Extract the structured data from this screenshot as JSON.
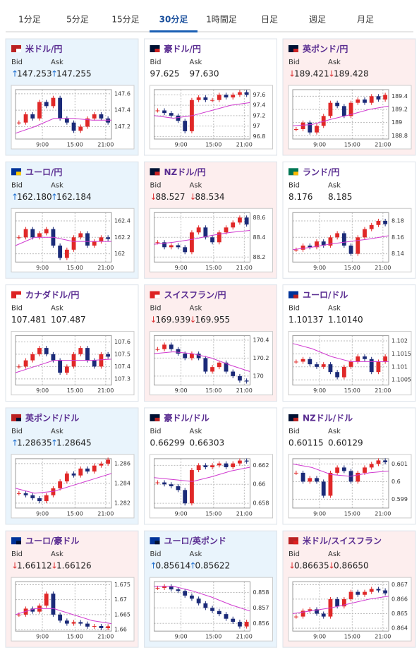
{
  "tabs": [
    "1分足",
    "5分足",
    "15分足",
    "30分足",
    "1時間足",
    "日足",
    "週足",
    "月足"
  ],
  "active_tab": "30分足",
  "labels": {
    "bid": "Bid",
    "ask": "Ask"
  },
  "time_ticks": [
    "9:00",
    "15:00",
    "21:00"
  ],
  "quotes": [
    {
      "name": "米ドル/円",
      "bid_arrow": "↑",
      "bid": "147.253",
      "ask_arrow": "↑",
      "ask": "147.255",
      "ylim": [
        147.05,
        147.65
      ],
      "yticks": [
        147.2,
        147.4,
        147.6
      ],
      "closes": [
        147.25,
        147.35,
        147.3,
        147.5,
        147.45,
        147.55,
        147.3,
        147.25,
        147.15,
        147.2,
        147.3,
        147.35,
        147.3,
        147.25
      ],
      "ma": [
        147.12,
        147.2,
        147.3,
        147.3,
        147.28,
        147.28
      ]
    },
    {
      "name": "豪ドル/円",
      "bid": "97.625",
      "ask": "97.630",
      "ylim": [
        96.75,
        97.7
      ],
      "yticks": [
        96.8,
        97,
        97.2,
        97.4,
        97.6
      ],
      "closes": [
        97.3,
        97.25,
        97.2,
        97.1,
        96.9,
        97.5,
        97.55,
        97.5,
        97.5,
        97.6,
        97.55,
        97.6,
        97.65,
        97.6
      ],
      "ma": [
        97.2,
        97.15,
        97.2,
        97.3,
        97.4,
        97.45
      ]
    },
    {
      "name": "英ポンド/円",
      "bid_arrow": "↓",
      "bid": "189.421",
      "ask_arrow": "↓",
      "ask": "189.428",
      "ylim": [
        188.75,
        189.5
      ],
      "yticks": [
        188.8,
        189,
        189.2,
        189.4
      ],
      "closes": [
        188.9,
        189.0,
        188.85,
        188.95,
        189.1,
        189.3,
        189.25,
        189.1,
        189.3,
        189.35,
        189.3,
        189.4,
        189.35,
        189.42
      ],
      "ma": [
        188.95,
        188.97,
        189.05,
        189.12,
        189.2,
        189.25
      ]
    },
    {
      "name": "ユーロ/円",
      "bid_arrow": "↑",
      "bid": "162.180",
      "ask_arrow": "↑",
      "ask": "162.184",
      "ylim": [
        161.9,
        162.5
      ],
      "yticks": [
        162,
        162.2,
        162.4
      ],
      "closes": [
        162.2,
        162.3,
        162.2,
        162.25,
        162.3,
        162.1,
        161.95,
        162.05,
        162.2,
        162.25,
        162.1,
        162.15,
        162.2,
        162.18
      ],
      "ma": [
        162.1,
        162.2,
        162.2,
        162.15,
        162.15,
        162.15
      ]
    },
    {
      "name": "NZドル/円",
      "bid_arrow": "↓",
      "bid": "88.527",
      "ask_arrow": "↓",
      "ask": "88.534",
      "ylim": [
        88.15,
        88.65
      ],
      "yticks": [
        88.2,
        88.4,
        88.6
      ],
      "closes": [
        88.35,
        88.3,
        88.32,
        88.3,
        88.25,
        88.45,
        88.5,
        88.4,
        88.35,
        88.45,
        88.5,
        88.55,
        88.6,
        88.53
      ],
      "ma": [
        88.33,
        88.35,
        88.38,
        88.42,
        88.45,
        88.47
      ]
    },
    {
      "name": "ランド/円",
      "bid": "8.176",
      "ask": "8.185",
      "ylim": [
        8.13,
        8.19
      ],
      "yticks": [
        8.14,
        8.16,
        8.18
      ],
      "closes": [
        8.145,
        8.15,
        8.148,
        8.155,
        8.15,
        8.16,
        8.165,
        8.15,
        8.14,
        8.16,
        8.17,
        8.175,
        8.18,
        8.176
      ],
      "ma": [
        8.145,
        8.148,
        8.152,
        8.155,
        8.158,
        8.162
      ]
    },
    {
      "name": "カナダドル/円",
      "bid": "107.481",
      "ask": "107.487",
      "ylim": [
        107.25,
        107.65
      ],
      "yticks": [
        107.3,
        107.4,
        107.5,
        107.6
      ],
      "closes": [
        107.4,
        107.45,
        107.5,
        107.55,
        107.5,
        107.45,
        107.35,
        107.4,
        107.5,
        107.55,
        107.45,
        107.4,
        107.5,
        107.48
      ],
      "ma": [
        107.35,
        107.4,
        107.45,
        107.45,
        107.45,
        107.46
      ]
    },
    {
      "name": "スイスフラン/円",
      "bid_arrow": "↓",
      "bid": "169.939",
      "ask_arrow": "↓",
      "ask": "169.955",
      "ylim": [
        169.9,
        170.45
      ],
      "yticks": [
        170,
        170.2,
        170.4
      ],
      "closes": [
        170.3,
        170.35,
        170.3,
        170.25,
        170.2,
        170.25,
        170.2,
        170.05,
        170.1,
        170.15,
        170.05,
        170.0,
        169.95,
        169.94
      ],
      "ma": [
        170.25,
        170.27,
        170.25,
        170.2,
        170.12,
        170.05
      ]
    },
    {
      "name": "ユーロ/ドル",
      "bid": "1.10137",
      "ask": "1.10140",
      "ylim": [
        1.1003,
        1.1022
      ],
      "yticks": [
        1.1005,
        1.101,
        1.1015,
        1.102
      ],
      "closes": [
        1.1012,
        1.1013,
        1.1011,
        1.101,
        1.1011,
        1.1008,
        1.1006,
        1.101,
        1.1012,
        1.1014,
        1.1013,
        1.1008,
        1.1012,
        1.1014
      ],
      "ma": [
        1.1019,
        1.1017,
        1.1014,
        1.1012,
        1.1012,
        1.1012
      ]
    },
    {
      "name": "英ポンド/ドル",
      "bid_arrow": "↑",
      "bid": "1.28635",
      "ask_arrow": "↑",
      "ask": "1.28645",
      "ylim": [
        1.2815,
        1.2865
      ],
      "yticks": [
        1.282,
        1.284,
        1.286
      ],
      "closes": [
        1.283,
        1.2828,
        1.2825,
        1.2822,
        1.2828,
        1.2835,
        1.2842,
        1.285,
        1.2848,
        1.2855,
        1.2852,
        1.2858,
        1.286,
        1.2864
      ],
      "ma": [
        1.2835,
        1.283,
        1.2832,
        1.2838,
        1.2844,
        1.285
      ]
    },
    {
      "name": "豪ドル/ドル",
      "bid": "0.66299",
      "ask": "0.66303",
      "ylim": [
        0.6575,
        0.6627
      ],
      "yticks": [
        0.658,
        0.66,
        0.662
      ],
      "closes": [
        0.6602,
        0.66,
        0.6598,
        0.6594,
        0.658,
        0.6615,
        0.662,
        0.6618,
        0.662,
        0.6622,
        0.6618,
        0.6622,
        0.6625,
        0.6624
      ],
      "ma": [
        0.6607,
        0.6605,
        0.6603,
        0.6608,
        0.6614,
        0.6618
      ]
    },
    {
      "name": "NZドル/ドル",
      "bid": "0.60115",
      "ask": "0.60129",
      "ylim": [
        0.5985,
        0.6013
      ],
      "yticks": [
        0.599,
        0.6,
        0.601
      ],
      "closes": [
        0.6005,
        0.6,
        0.6002,
        0.6,
        0.5992,
        0.6005,
        0.6008,
        0.6006,
        0.6,
        0.6005,
        0.6008,
        0.601,
        0.6012,
        0.6011
      ],
      "ma": [
        0.601,
        0.6008,
        0.6004,
        0.6003,
        0.6005,
        0.6006
      ]
    },
    {
      "name": "ユーロ/豪ドル",
      "bid_arrow": "↓",
      "bid": "1.66112",
      "ask_arrow": "↓",
      "ask": "1.66126",
      "ylim": [
        1.6595,
        1.676
      ],
      "yticks": [
        1.66,
        1.665,
        1.67,
        1.675
      ],
      "closes": [
        1.665,
        1.667,
        1.666,
        1.668,
        1.672,
        1.665,
        1.663,
        1.662,
        1.6625,
        1.662,
        1.661,
        1.6612,
        1.6605,
        1.6611
      ],
      "ma": [
        1.665,
        1.667,
        1.667,
        1.665,
        1.663,
        1.662
      ]
    },
    {
      "name": "ユーロ/英ポンド",
      "bid_arrow": "↑",
      "bid": "0.85614",
      "ask_arrow": "↑",
      "ask": "0.85622",
      "ylim": [
        0.8555,
        0.8587
      ],
      "yticks": [
        0.856,
        0.857,
        0.858
      ],
      "closes": [
        0.8583,
        0.8584,
        0.8582,
        0.8581,
        0.8578,
        0.8576,
        0.8573,
        0.857,
        0.8568,
        0.8566,
        0.8563,
        0.8561,
        0.8558,
        0.8561
      ],
      "ma": [
        0.8584,
        0.8584,
        0.8581,
        0.8577,
        0.8572,
        0.8568
      ]
    },
    {
      "name": "米ドル/スイスフラン",
      "bid_arrow": "↓",
      "bid": "0.86635",
      "ask_arrow": "↓",
      "ask": "0.86650",
      "ylim": [
        0.8638,
        0.8672
      ],
      "yticks": [
        0.864,
        0.865,
        0.866,
        0.867
      ],
      "closes": [
        0.8648,
        0.8652,
        0.8653,
        0.865,
        0.8648,
        0.866,
        0.8655,
        0.866,
        0.8665,
        0.8663,
        0.8665,
        0.8667,
        0.8666,
        0.8664
      ],
      "ma": [
        0.865,
        0.8652,
        0.8654,
        0.8657,
        0.866,
        0.8662
      ]
    }
  ]
}
